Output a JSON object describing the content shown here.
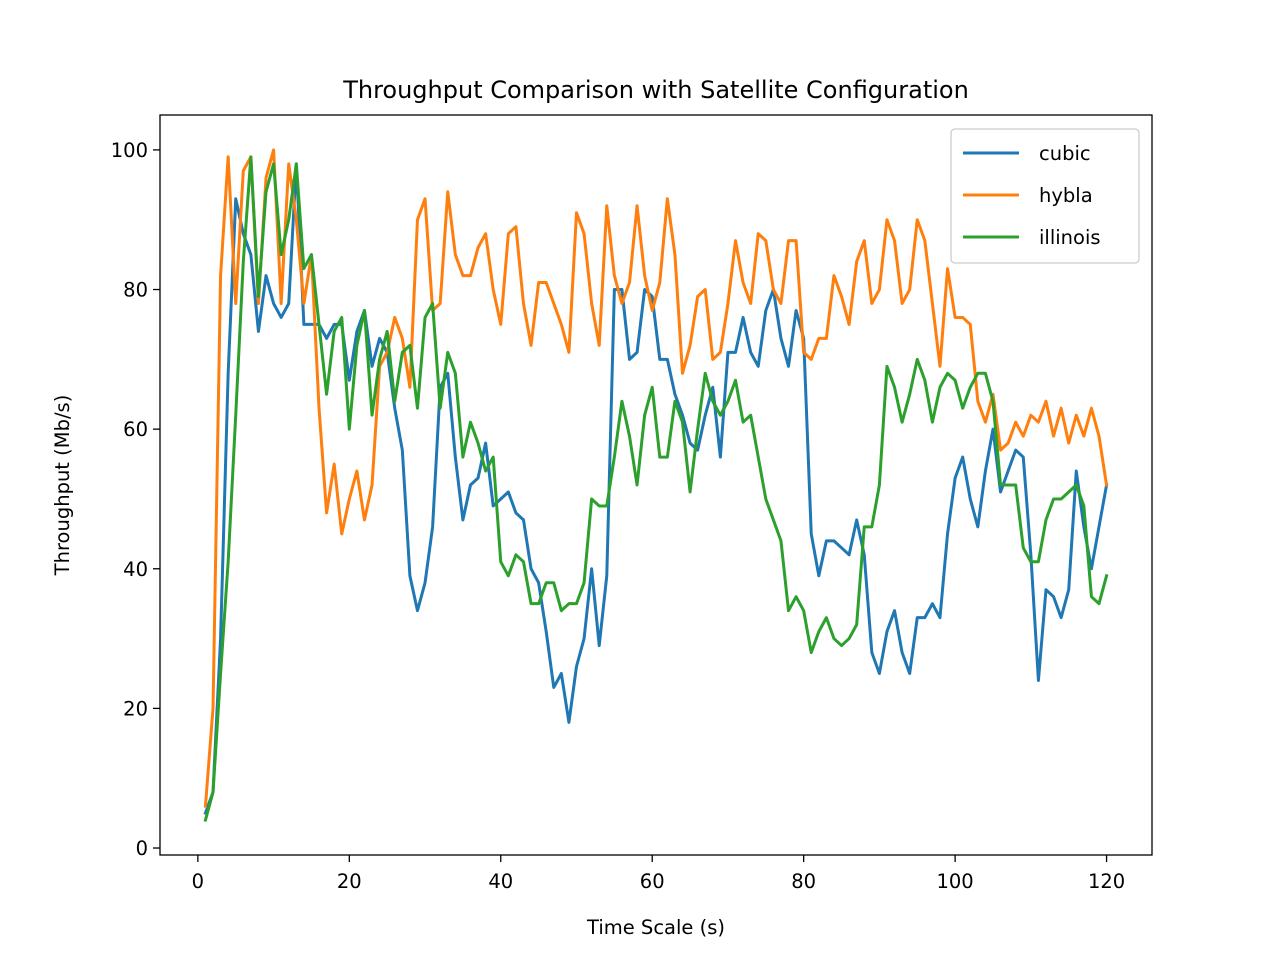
{
  "chart_data": {
    "type": "line",
    "title": "Throughput Comparison with Satellite Configuration",
    "xlabel": "Time Scale (s)",
    "ylabel": "Throughput (Mb/s)",
    "xlim": [
      -5,
      126
    ],
    "ylim": [
      -1,
      105
    ],
    "xticks": [
      0,
      20,
      40,
      60,
      80,
      100,
      120
    ],
    "yticks": [
      0,
      20,
      40,
      60,
      80,
      100
    ],
    "grid": false,
    "legend_position": "top-right",
    "x": [
      1,
      2,
      3,
      4,
      5,
      6,
      7,
      8,
      9,
      10,
      11,
      12,
      13,
      14,
      15,
      16,
      17,
      18,
      19,
      20,
      21,
      22,
      23,
      24,
      25,
      26,
      27,
      28,
      29,
      30,
      31,
      32,
      33,
      34,
      35,
      36,
      37,
      38,
      39,
      40,
      41,
      42,
      43,
      44,
      45,
      46,
      47,
      48,
      49,
      50,
      51,
      52,
      53,
      54,
      55,
      56,
      57,
      58,
      59,
      60,
      61,
      62,
      63,
      64,
      65,
      66,
      67,
      68,
      69,
      70,
      71,
      72,
      73,
      74,
      75,
      76,
      77,
      78,
      79,
      80,
      81,
      82,
      83,
      84,
      85,
      86,
      87,
      88,
      89,
      90,
      91,
      92,
      93,
      94,
      95,
      96,
      97,
      98,
      99,
      100,
      101,
      102,
      103,
      104,
      105,
      106,
      107,
      108,
      109,
      110,
      111,
      112,
      113,
      114,
      115,
      116,
      117,
      118,
      119,
      120
    ],
    "series": [
      {
        "name": "cubic",
        "color": "#1f77b4",
        "values": [
          5,
          8,
          30,
          68,
          93,
          88,
          85,
          74,
          82,
          78,
          76,
          78,
          98,
          75,
          75,
          75,
          73,
          75,
          75,
          67,
          74,
          77,
          69,
          73,
          71,
          63,
          57,
          39,
          34,
          38,
          46,
          66,
          68,
          56,
          47,
          52,
          53,
          58,
          49,
          50,
          51,
          48,
          47,
          40,
          38,
          31,
          23,
          25,
          18,
          26,
          30,
          40,
          29,
          39,
          80,
          80,
          70,
          71,
          80,
          79,
          70,
          70,
          65,
          62,
          58,
          57,
          62,
          66,
          56,
          71,
          71,
          76,
          71,
          69,
          77,
          80,
          73,
          69,
          77,
          73,
          45,
          39,
          44,
          44,
          43,
          42,
          47,
          42,
          28,
          25,
          31,
          34,
          28,
          25,
          33,
          33,
          35,
          33,
          45,
          53,
          56,
          50,
          46,
          54,
          60,
          51,
          54,
          57,
          56,
          42,
          24,
          37,
          36,
          33,
          37,
          54,
          46,
          40,
          46,
          52
        ]
      },
      {
        "name": "hybla",
        "color": "#ff7f0e",
        "values": [
          6,
          20,
          82,
          99,
          78,
          97,
          99,
          78,
          96,
          100,
          78,
          98,
          90,
          78,
          85,
          63,
          48,
          55,
          45,
          50,
          54,
          47,
          52,
          69,
          71,
          76,
          73,
          66,
          90,
          93,
          77,
          78,
          94,
          85,
          82,
          82,
          86,
          88,
          80,
          75,
          88,
          89,
          78,
          72,
          81,
          81,
          78,
          75,
          71,
          91,
          88,
          78,
          72,
          92,
          82,
          78,
          81,
          92,
          82,
          77,
          81,
          93,
          85,
          68,
          72,
          79,
          80,
          70,
          71,
          78,
          87,
          81,
          78,
          88,
          87,
          80,
          78,
          87,
          87,
          71,
          70,
          73,
          73,
          82,
          79,
          75,
          84,
          87,
          78,
          80,
          90,
          87,
          78,
          80,
          90,
          87,
          78,
          69,
          83,
          76,
          76,
          75,
          64,
          61,
          65,
          57,
          58,
          61,
          59,
          62,
          61,
          64,
          59,
          63,
          58,
          62,
          59,
          63,
          59,
          52
        ]
      },
      {
        "name": "illinois",
        "color": "#2ca02c",
        "values": [
          4,
          8,
          25,
          41,
          62,
          84,
          99,
          79,
          94,
          98,
          85,
          90,
          98,
          83,
          85,
          75,
          65,
          74,
          76,
          60,
          72,
          77,
          62,
          70,
          74,
          64,
          71,
          72,
          63,
          76,
          78,
          63,
          71,
          68,
          56,
          61,
          58,
          54,
          56,
          41,
          39,
          42,
          41,
          35,
          35,
          38,
          38,
          34,
          35,
          35,
          38,
          50,
          49,
          49,
          56,
          64,
          59,
          52,
          62,
          66,
          56,
          56,
          64,
          61,
          51,
          60,
          68,
          64,
          62,
          64,
          67,
          61,
          62,
          56,
          50,
          47,
          44,
          34,
          36,
          34,
          28,
          31,
          33,
          30,
          29,
          30,
          32,
          46,
          46,
          52,
          69,
          66,
          61,
          65,
          70,
          67,
          61,
          66,
          68,
          67,
          63,
          66,
          68,
          68,
          64,
          52,
          52,
          52,
          43,
          41,
          41,
          47,
          50,
          50,
          51,
          52,
          49,
          36,
          35,
          39
        ]
      }
    ]
  }
}
